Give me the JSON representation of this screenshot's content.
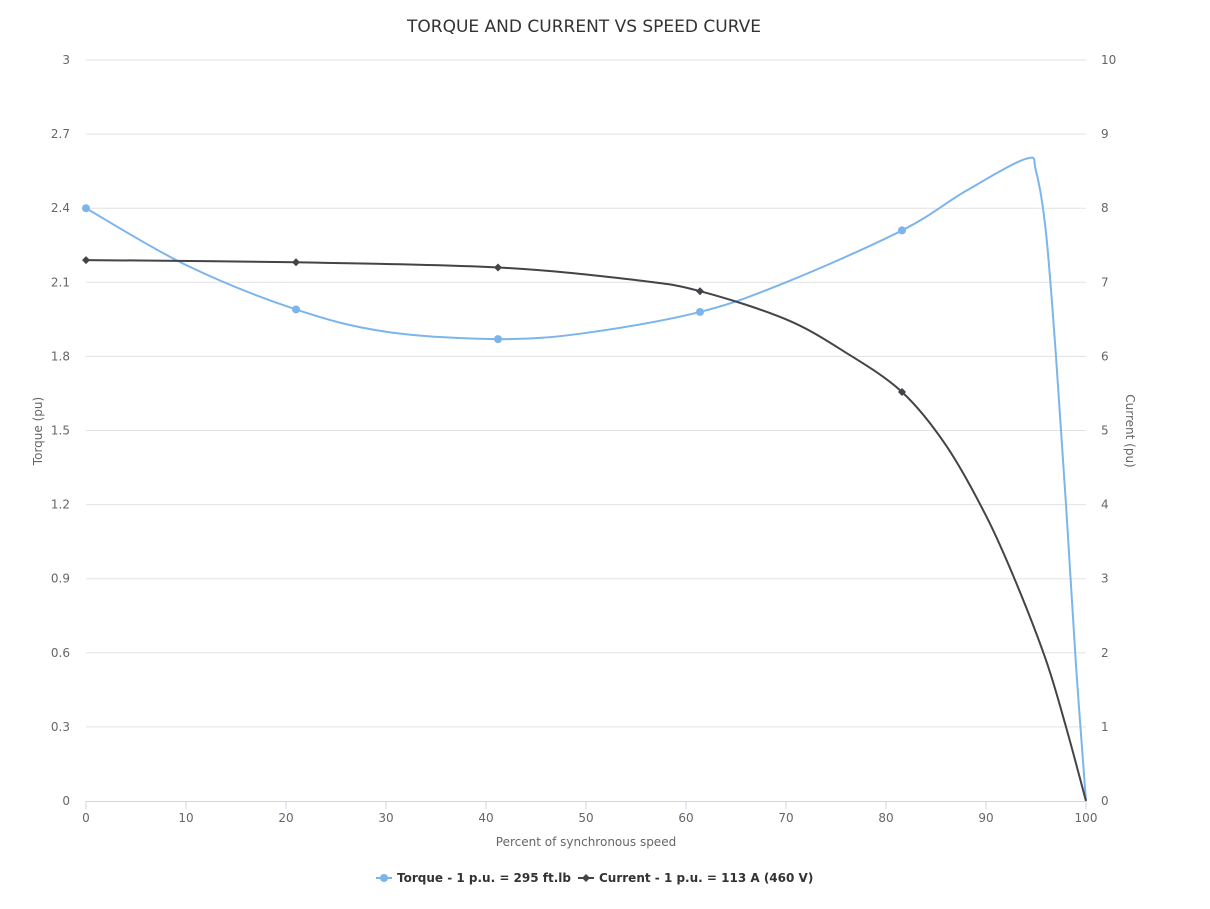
{
  "chart_data": {
    "type": "line",
    "title": "TORQUE AND CURRENT VS SPEED CURVE",
    "xlabel": "Percent of synchronous speed",
    "ylabel_left": "Torque (pu)",
    "ylabel_right": "Current (pu)",
    "xlim": [
      0,
      100
    ],
    "ylim_left": [
      0,
      3
    ],
    "ylim_right": [
      0,
      10
    ],
    "x_ticks": [
      "0",
      "10",
      "20",
      "30",
      "40",
      "50",
      "60",
      "70",
      "80",
      "90",
      "100"
    ],
    "y_left_ticks": [
      "0",
      "0.3",
      "0.6",
      "0.9",
      "1.2",
      "1.5",
      "1.8",
      "2.1",
      "2.4",
      "2.7",
      "3"
    ],
    "y_right_ticks": [
      "0",
      "1",
      "2",
      "3",
      "4",
      "5",
      "6",
      "7",
      "8",
      "9",
      "10"
    ],
    "grid": true,
    "legend_position": "bottom-center",
    "series": [
      {
        "name": "Torque - 1 p.u. = 295 ft.lb",
        "axis": "left",
        "color": "#7cb5ec",
        "marker": "circle",
        "points": [
          [
            0,
            2.4
          ],
          [
            21,
            1.99
          ],
          [
            41.2,
            1.87
          ],
          [
            61.4,
            1.98
          ],
          [
            81.6,
            2.31
          ]
        ],
        "curve": [
          [
            0,
            2.4
          ],
          [
            10,
            2.17
          ],
          [
            21,
            1.99
          ],
          [
            30,
            1.9
          ],
          [
            41.2,
            1.87
          ],
          [
            50,
            1.895
          ],
          [
            61.4,
            1.98
          ],
          [
            70,
            2.1
          ],
          [
            81.6,
            2.31
          ],
          [
            88,
            2.47
          ],
          [
            94,
            2.6
          ],
          [
            95,
            2.55
          ],
          [
            96,
            2.3
          ],
          [
            97,
            1.8
          ],
          [
            98,
            1.2
          ],
          [
            99,
            0.55
          ],
          [
            100,
            0
          ]
        ]
      },
      {
        "name": "Current - 1 p.u. = 113 A (460 V)",
        "axis": "right",
        "color": "#434348",
        "marker": "diamond",
        "points": [
          [
            0,
            7.3
          ],
          [
            21,
            7.27
          ],
          [
            41.2,
            7.2
          ],
          [
            61.4,
            6.88
          ],
          [
            81.6,
            5.52
          ]
        ],
        "curve": [
          [
            0,
            7.3
          ],
          [
            21,
            7.27
          ],
          [
            41.2,
            7.2
          ],
          [
            55,
            7.03
          ],
          [
            61.4,
            6.88
          ],
          [
            70,
            6.5
          ],
          [
            76,
            6.05
          ],
          [
            81.6,
            5.52
          ],
          [
            86,
            4.8
          ],
          [
            90,
            3.85
          ],
          [
            93,
            2.95
          ],
          [
            96,
            1.9
          ],
          [
            98,
            1.0
          ],
          [
            100,
            0
          ]
        ]
      }
    ]
  }
}
